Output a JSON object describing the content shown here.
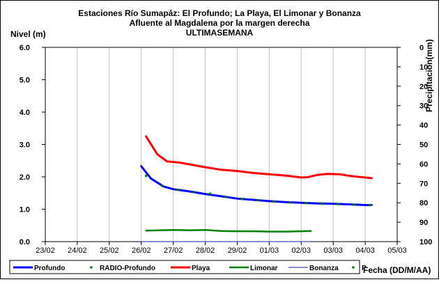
{
  "chart_data": {
    "type": "line",
    "title_lines": [
      "Estaciones Río Sumapáz: El Profundo; La Playa, El Limonar y Bonanza",
      "Afluente al Magdalena por la margen derecha",
      "ULTIMASEMANA"
    ],
    "ylabel": "Nivel (m)",
    "y2label": "Precipitacion(mm)",
    "xlabel": "Fecha (DD/M/AA)",
    "x_ticks": [
      "23/02",
      "24/02",
      "25/02",
      "26/02",
      "27/02",
      "28/02",
      "29/02",
      "01/03",
      "02/03",
      "03/03",
      "04/03",
      "05/03"
    ],
    "x_range": [
      0,
      11
    ],
    "y_ticks": [
      "0.0",
      "1.0",
      "2.0",
      "3.0",
      "4.0",
      "5.0",
      "6.0"
    ],
    "y_range": [
      0,
      6
    ],
    "y2_ticks": [
      "0",
      "10",
      "20",
      "30",
      "40",
      "50",
      "60",
      "70",
      "80",
      "90",
      "100"
    ],
    "y2_range": [
      0,
      100
    ],
    "y2_inverted": true,
    "grid": "vertical",
    "legend_position": "bottom",
    "series": [
      {
        "name": "Profundo",
        "color": "#0000ff",
        "style": "line",
        "width": 3,
        "points": [
          [
            3.0,
            2.33
          ],
          [
            3.3,
            1.95
          ],
          [
            3.7,
            1.7
          ],
          [
            4.0,
            1.62
          ],
          [
            4.5,
            1.55
          ],
          [
            5.0,
            1.47
          ],
          [
            5.5,
            1.4
          ],
          [
            6.0,
            1.33
          ],
          [
            6.5,
            1.29
          ],
          [
            7.0,
            1.25
          ],
          [
            7.5,
            1.22
          ],
          [
            8.0,
            1.2
          ],
          [
            8.5,
            1.18
          ],
          [
            9.0,
            1.17
          ],
          [
            9.5,
            1.15
          ],
          [
            10.0,
            1.13
          ],
          [
            10.2,
            1.13
          ]
        ]
      },
      {
        "name": "RADIO-Profundo",
        "color": "#008000",
        "style": "dots",
        "points": [
          [
            3.15,
            2.03
          ],
          [
            3.65,
            1.72
          ],
          [
            4.15,
            1.6
          ],
          [
            4.65,
            1.53
          ],
          [
            5.15,
            1.48
          ],
          [
            5.65,
            1.38
          ],
          [
            6.15,
            1.32
          ],
          [
            6.65,
            1.28
          ],
          [
            7.15,
            1.24
          ],
          [
            7.65,
            1.21
          ],
          [
            8.15,
            1.19
          ],
          [
            8.65,
            1.17
          ],
          [
            9.15,
            1.16
          ],
          [
            9.65,
            1.14
          ],
          [
            10.15,
            1.13
          ]
        ]
      },
      {
        "name": "Playa",
        "color": "#ff0000",
        "style": "line",
        "width": 3,
        "points": [
          [
            3.15,
            3.25
          ],
          [
            3.5,
            2.7
          ],
          [
            3.8,
            2.48
          ],
          [
            4.2,
            2.44
          ],
          [
            5.0,
            2.3
          ],
          [
            5.5,
            2.22
          ],
          [
            6.0,
            2.18
          ],
          [
            6.5,
            2.12
          ],
          [
            7.0,
            2.08
          ],
          [
            7.5,
            2.04
          ],
          [
            8.0,
            1.98
          ],
          [
            8.2,
            1.99
          ],
          [
            8.5,
            2.06
          ],
          [
            8.8,
            2.09
          ],
          [
            9.2,
            2.08
          ],
          [
            9.6,
            2.02
          ],
          [
            10.0,
            1.98
          ],
          [
            10.2,
            1.96
          ]
        ]
      },
      {
        "name": "Limonar",
        "color": "#008000",
        "style": "line",
        "width": 2.5,
        "points": [
          [
            3.15,
            0.34
          ],
          [
            4.0,
            0.36
          ],
          [
            4.5,
            0.35
          ],
          [
            5.0,
            0.36
          ],
          [
            5.5,
            0.33
          ],
          [
            6.0,
            0.32
          ],
          [
            6.5,
            0.32
          ],
          [
            7.0,
            0.31
          ],
          [
            7.5,
            0.31
          ],
          [
            8.0,
            0.32
          ],
          [
            8.3,
            0.33
          ]
        ]
      },
      {
        "name": "Bonanza",
        "color": "#1a1aa6",
        "style": "line",
        "width": 1,
        "points": [
          [
            3.0,
            0.0
          ],
          [
            8.3,
            0.0
          ]
        ]
      },
      {
        "name": "P",
        "color": "#008000",
        "style": "dots",
        "points": []
      }
    ]
  }
}
